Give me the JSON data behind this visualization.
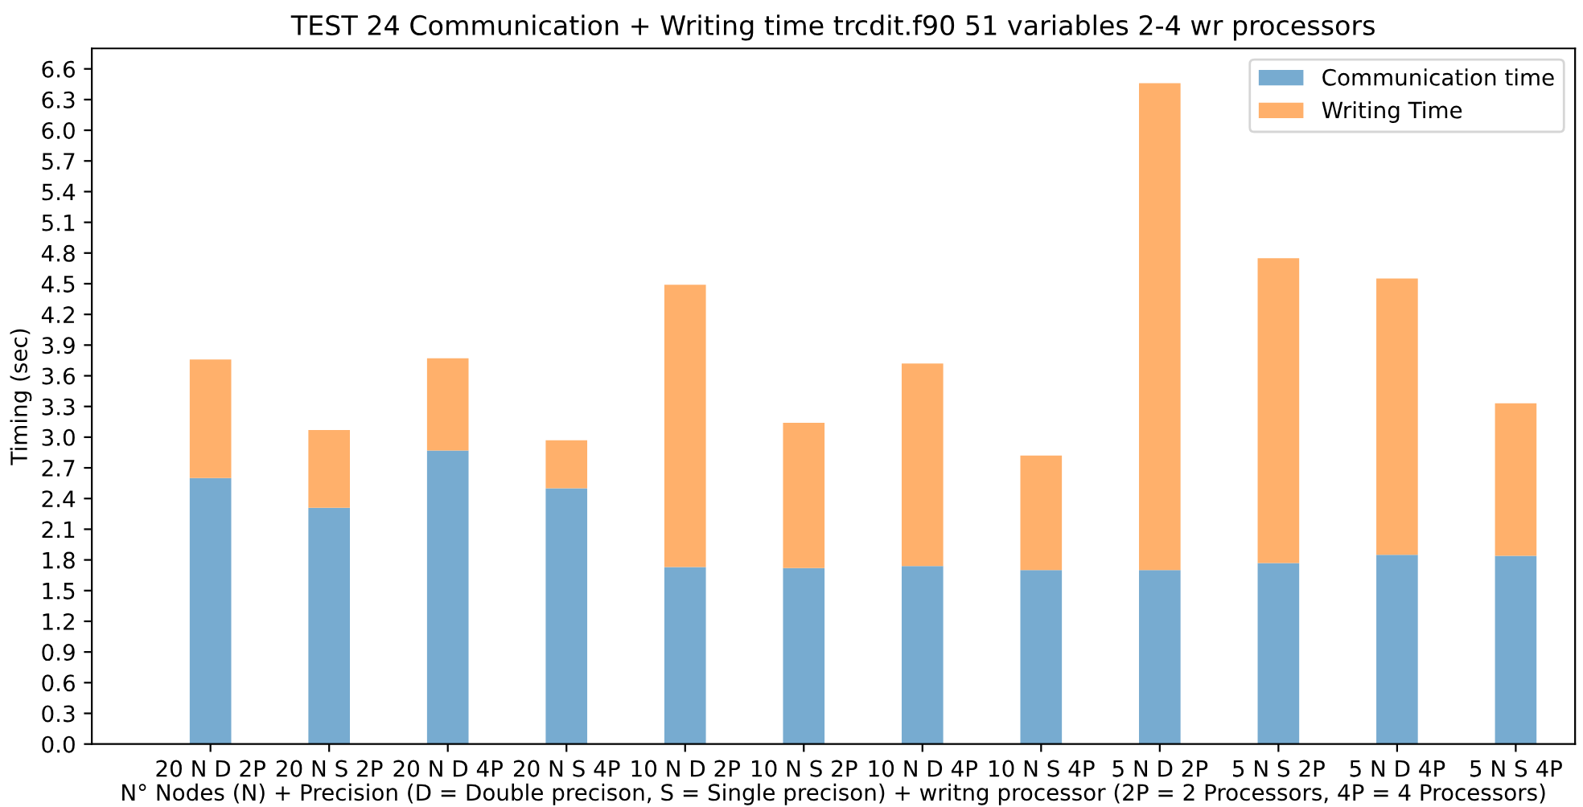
{
  "chart_data": {
    "type": "bar",
    "title": "TEST 24 Communication + Writing time trcdit.f90 51 variables 2-4 wr processors",
    "xlabel": "N° Nodes (N) + Precision (D = Double precison, S = Single precison) + writng processor (2P = 2 Processors, 4P = 4 Processors)",
    "ylabel": "Timing (sec)",
    "categories": [
      "20 N D 2P",
      "20 N S 2P",
      "20 N D 4P",
      "20 N S 4P",
      "10 N D 2P",
      "10 N S 2P",
      "10 N D 4P",
      "10 N S 4P",
      "5 N D 2P",
      "5 N S 2P",
      "5 N D 4P",
      "5 N S 4P"
    ],
    "stacked": true,
    "series": [
      {
        "name": "Communication time",
        "color": "#77abd0",
        "values": [
          2.6,
          2.31,
          2.87,
          2.5,
          1.73,
          1.72,
          1.74,
          1.7,
          1.7,
          1.77,
          1.85,
          1.84
        ]
      },
      {
        "name": "Writing Time",
        "color": "#ffb06b",
        "values": [
          1.16,
          0.76,
          0.9,
          0.47,
          2.76,
          1.42,
          1.98,
          1.12,
          4.76,
          2.98,
          2.7,
          1.49
        ]
      }
    ],
    "ylim": [
      0,
      6.8
    ],
    "yticks": [
      {
        "value": 0,
        "label": "0.0"
      },
      0.3,
      0.6,
      0.9,
      1.2,
      1.5,
      1.8,
      2.1,
      2.4,
      2.7,
      {
        "value": 3,
        "label": "3.0"
      },
      3.3,
      3.6,
      3.9,
      4.2,
      4.5,
      4.8,
      5.1,
      5.4,
      5.7,
      {
        "value": 6,
        "label": "6.0"
      },
      6.3,
      6.6
    ],
    "grid": false,
    "legend": "top right"
  }
}
